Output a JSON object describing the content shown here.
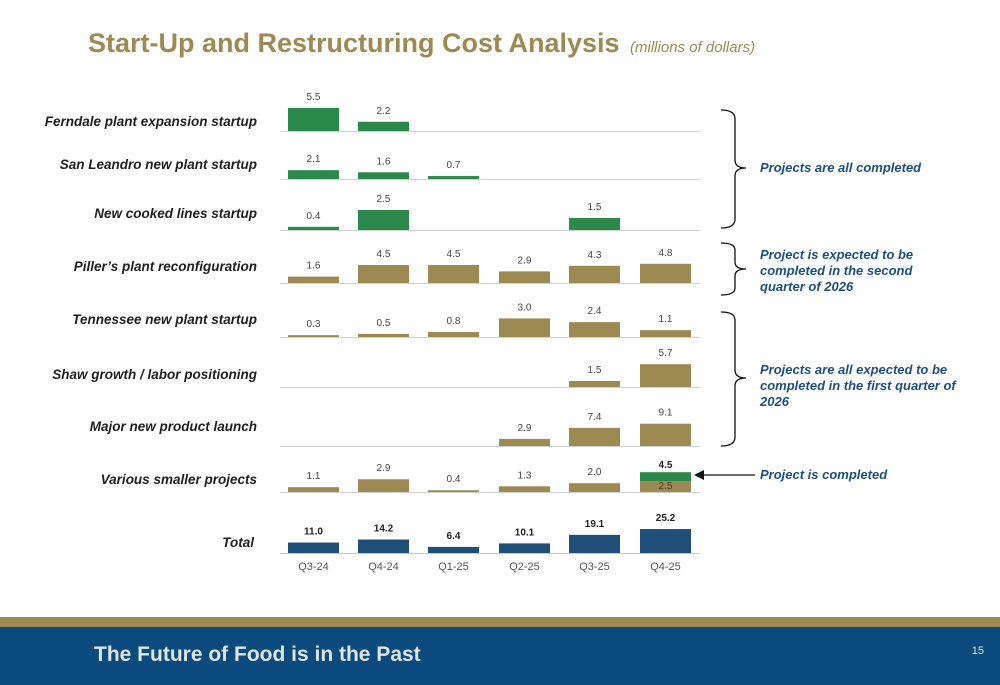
{
  "header": {
    "title": "Start-Up and Restructuring Cost Analysis",
    "unit": "(millions of dollars)"
  },
  "colors": {
    "green": "#2b8a4b",
    "gold": "#9c8a52",
    "blue": "#1f4e79",
    "note_text": "#1d4e83",
    "footer_bg": "#0b4a7d"
  },
  "chart_data": {
    "type": "bar",
    "categories": [
      "Q3-24",
      "Q4-24",
      "Q1-25",
      "Q2-25",
      "Q3-25",
      "Q4-25"
    ],
    "rows": [
      {
        "label": "Ferndale plant expansion startup",
        "color": "green",
        "values": [
          5.5,
          2.2,
          null,
          null,
          null,
          null
        ],
        "value_labels": [
          "5.5",
          "2.2",
          "",
          "",
          "",
          ""
        ]
      },
      {
        "label": "San Leandro new plant startup",
        "color": "green",
        "values": [
          2.1,
          1.6,
          0.7,
          null,
          null,
          null
        ],
        "value_labels": [
          "2.1",
          "1.6",
          "0.7",
          "",
          "",
          ""
        ]
      },
      {
        "label": "New cooked lines startup",
        "color": "green",
        "values": [
          0.4,
          2.5,
          null,
          null,
          1.5,
          null
        ],
        "value_labels": [
          "0.4",
          "2.5",
          "",
          "",
          "1.5",
          ""
        ]
      },
      {
        "label": "Piller’s plant reconfiguration",
        "color": "gold",
        "values": [
          1.6,
          4.5,
          4.5,
          2.9,
          4.3,
          4.8
        ],
        "value_labels": [
          "1.6",
          "4.5",
          "4.5",
          "2.9",
          "4.3",
          "4.8"
        ]
      },
      {
        "label": "Tennessee new plant startup",
        "color": "gold",
        "values": [
          0.3,
          0.5,
          0.8,
          3.0,
          2.4,
          1.1
        ],
        "value_labels": [
          "0.3",
          "0.5",
          "0.8",
          "3.0",
          "2.4",
          "1.1"
        ]
      },
      {
        "label": "Shaw growth / labor positioning",
        "color": "gold",
        "values": [
          null,
          null,
          null,
          null,
          1.5,
          5.7
        ],
        "value_labels": [
          "",
          "",
          "",
          "",
          "1.5",
          "5.7"
        ]
      },
      {
        "label": "Major new product launch",
        "color": "gold",
        "values": [
          null,
          null,
          null,
          2.9,
          7.4,
          9.1
        ],
        "value_labels": [
          "",
          "",
          "",
          "2.9",
          "7.4",
          "9.1"
        ]
      },
      {
        "label": "Various smaller projects",
        "color": "gold",
        "values": [
          1.1,
          2.9,
          0.4,
          1.3,
          2.0,
          2.5
        ],
        "value_labels": [
          "1.1",
          "2.9",
          "0.4",
          "1.3",
          "2.0",
          "2.5"
        ],
        "stack_top": {
          "index": 5,
          "value": 2.0,
          "color": "green",
          "total_label": "4.5"
        }
      }
    ],
    "total": {
      "label": "Total",
      "color": "blue",
      "values": [
        11.0,
        14.2,
        6.4,
        10.1,
        19.1,
        25.2
      ],
      "value_labels": [
        "11.0",
        "14.2",
        "6.4",
        "10.1",
        "19.1",
        "25.2"
      ]
    },
    "notes": [
      "Projects are all completed",
      "Project is expected to be completed in the second quarter of 2026",
      "Projects are all expected to be completed in the first quarter of 2026",
      "Project is completed"
    ]
  },
  "footer": {
    "text": "The Future of Food is in the Past",
    "page": "15"
  }
}
